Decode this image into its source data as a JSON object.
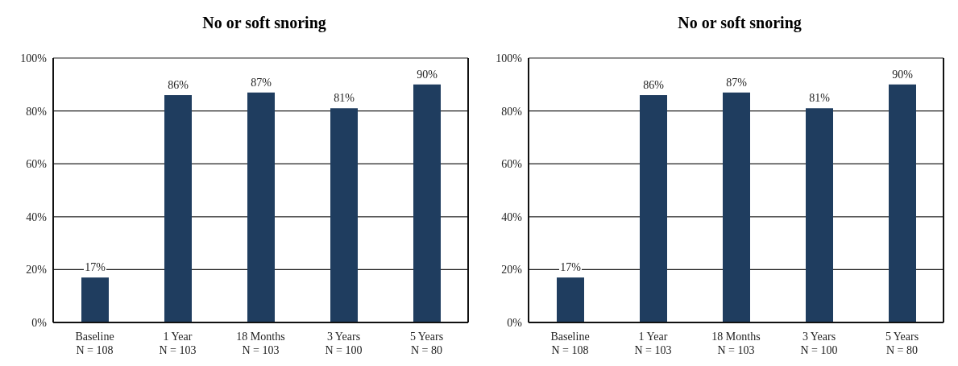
{
  "chart_data": [
    {
      "type": "bar",
      "title": "No or soft snoring",
      "categories": [
        "Baseline\nN = 108",
        "1 Year\nN = 103",
        "18 Months\nN = 103",
        "3 Years\nN = 100",
        "5 Years\nN = 80"
      ],
      "values": [
        17,
        86,
        87,
        81,
        90
      ],
      "color": "#1f3d5f",
      "value_labels": [
        "17%",
        "86%",
        "87%",
        "81%",
        "90%"
      ],
      "ylim": [
        0,
        100
      ],
      "yticks": [
        {
          "value": 0,
          "label": "0%"
        },
        {
          "value": 20,
          "label": "20%"
        },
        {
          "value": 40,
          "label": "40%"
        },
        {
          "value": 60,
          "label": "60%"
        },
        {
          "value": 80,
          "label": "80%"
        },
        {
          "value": 100,
          "label": "100%"
        }
      ],
      "grid": "y"
    },
    {
      "type": "bar",
      "title": "No or soft snoring",
      "categories": [
        "Baseline\nN = 108",
        "1 Year\nN = 103",
        "18 Months\nN = 103",
        "3 Years\nN = 100",
        "5 Years\nN = 80"
      ],
      "values": [
        17,
        86,
        87,
        81,
        90
      ],
      "color": "#1f3d5f",
      "value_labels": [
        "17%",
        "86%",
        "87%",
        "81%",
        "90%"
      ],
      "ylim": [
        0,
        100
      ],
      "yticks": [
        {
          "value": 0,
          "label": "0%"
        },
        {
          "value": 20,
          "label": "20%"
        },
        {
          "value": 40,
          "label": "40%"
        },
        {
          "value": 60,
          "label": "60%"
        },
        {
          "value": 80,
          "label": "80%"
        },
        {
          "value": 100,
          "label": "100%"
        }
      ],
      "grid": "y"
    }
  ]
}
